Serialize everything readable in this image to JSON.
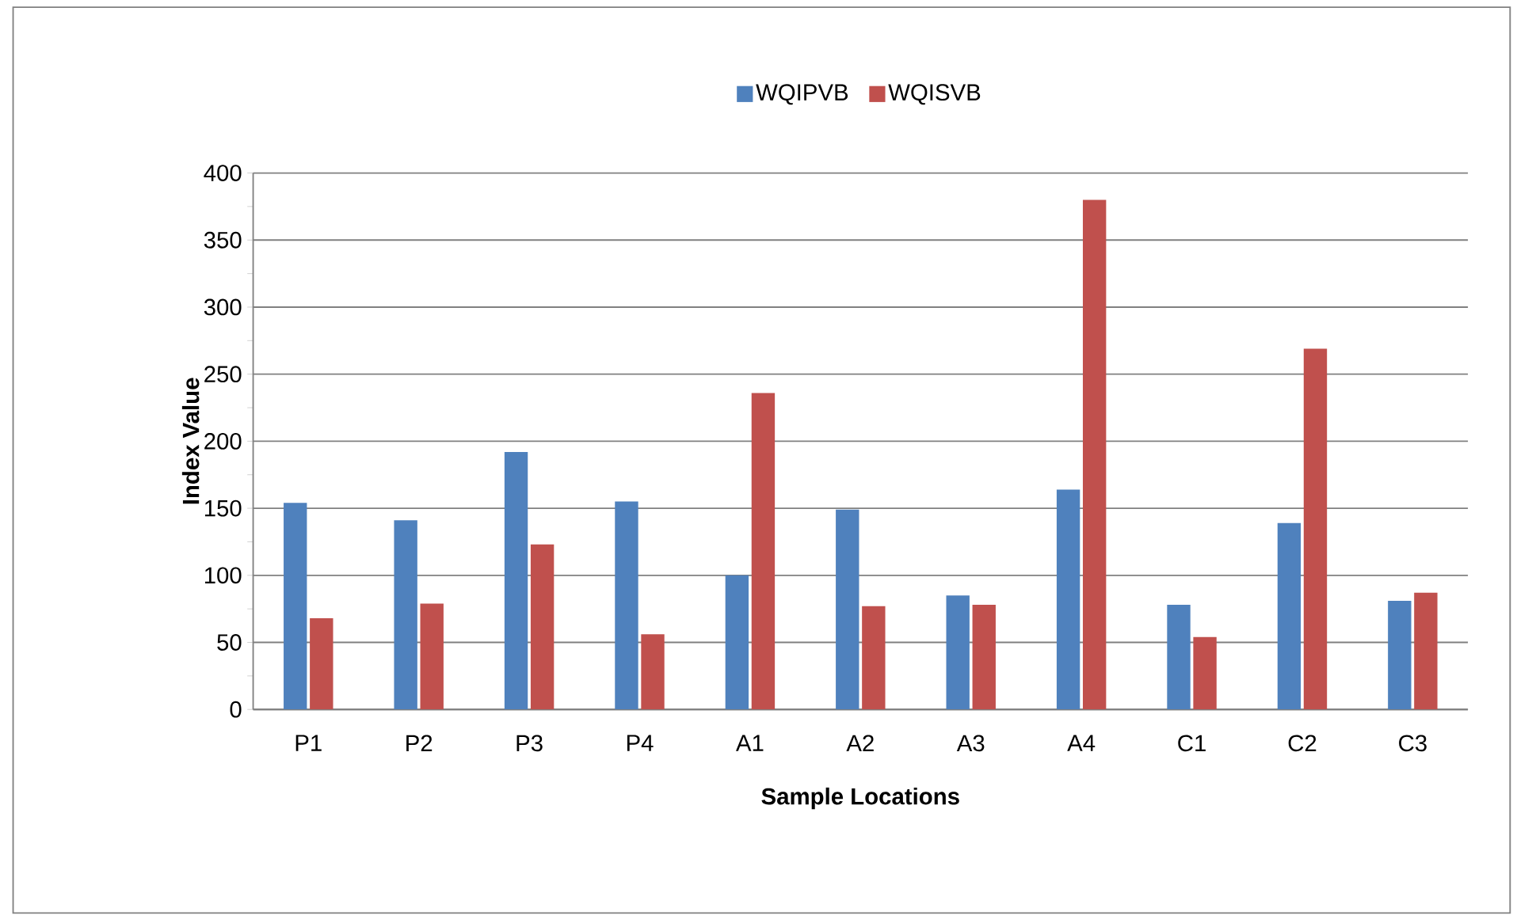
{
  "chart_data": {
    "type": "bar",
    "xlabel": "Sample Locations",
    "ylabel": "Index Value",
    "categories": [
      "P1",
      "P2",
      "P3",
      "P4",
      "A1",
      "A2",
      "A3",
      "A4",
      "C1",
      "C2",
      "C3"
    ],
    "series": [
      {
        "name": "WQIPVB",
        "color": "#4f81bd",
        "values": [
          154,
          141,
          192,
          155,
          100,
          149,
          85,
          164,
          78,
          139,
          81
        ]
      },
      {
        "name": "WQISVB",
        "color": "#c0504d",
        "values": [
          68,
          79,
          123,
          56,
          236,
          77,
          78,
          380,
          54,
          269,
          87
        ]
      }
    ],
    "ylim": [
      0,
      400
    ],
    "yticks": [
      0,
      50,
      100,
      150,
      200,
      250,
      300,
      350,
      400
    ],
    "grid": "y",
    "legend": "top"
  }
}
